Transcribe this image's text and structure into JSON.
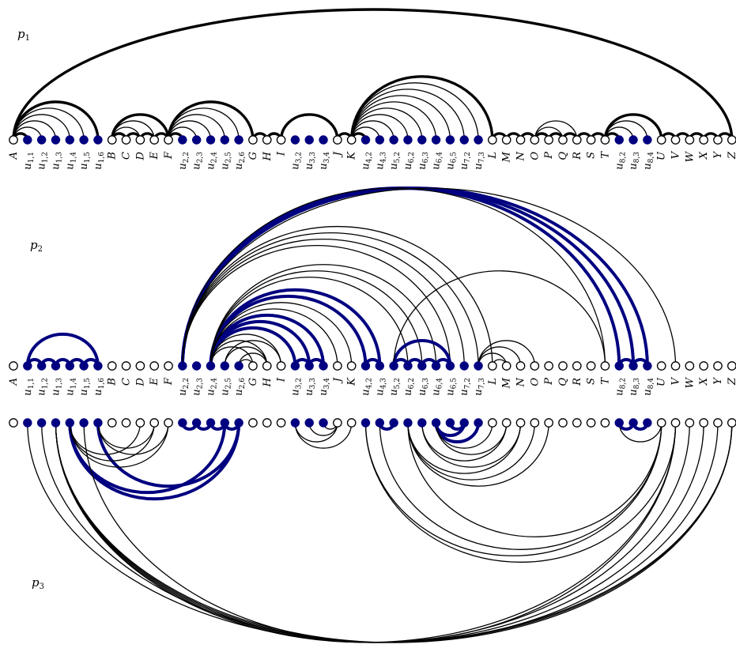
{
  "colors": {
    "ink": "#000000",
    "accent": "#000080",
    "hollow_fill": "#ffffff"
  },
  "pages": [
    {
      "name": "p",
      "sub": "1"
    },
    {
      "name": "p",
      "sub": "2"
    },
    {
      "name": "p",
      "sub": "3"
    }
  ],
  "vertices": [
    {
      "main": "A"
    },
    {
      "main": "u",
      "sub": "1,1",
      "fill": 1
    },
    {
      "main": "u",
      "sub": "1,2",
      "fill": 1
    },
    {
      "main": "u",
      "sub": "1,3",
      "fill": 1
    },
    {
      "main": "u",
      "sub": "1,4",
      "fill": 1
    },
    {
      "main": "u",
      "sub": "1,5",
      "fill": 1
    },
    {
      "main": "u",
      "sub": "1,6",
      "fill": 1
    },
    {
      "main": "B"
    },
    {
      "main": "C"
    },
    {
      "main": "D"
    },
    {
      "main": "E"
    },
    {
      "main": "F"
    },
    {
      "main": "u",
      "sub": "2,2",
      "fill": 1
    },
    {
      "main": "u",
      "sub": "2,3",
      "fill": 1
    },
    {
      "main": "u",
      "sub": "2,4",
      "fill": 1
    },
    {
      "main": "u",
      "sub": "2,5",
      "fill": 1
    },
    {
      "main": "u",
      "sub": "2,6",
      "fill": 1
    },
    {
      "main": "G"
    },
    {
      "main": "H"
    },
    {
      "main": "I"
    },
    {
      "main": "u",
      "sub": "3,2",
      "fill": 1
    },
    {
      "main": "u",
      "sub": "3,3",
      "fill": 1
    },
    {
      "main": "u",
      "sub": "3,4",
      "fill": 1
    },
    {
      "main": "J"
    },
    {
      "main": "K"
    },
    {
      "main": "u",
      "sub": "4,2",
      "fill": 1
    },
    {
      "main": "u",
      "sub": "4,3",
      "fill": 1
    },
    {
      "main": "u",
      "sub": "5,2",
      "fill": 1
    },
    {
      "main": "u",
      "sub": "6,2",
      "fill": 1
    },
    {
      "main": "u",
      "sub": "6,3",
      "fill": 1
    },
    {
      "main": "u",
      "sub": "6,4",
      "fill": 1
    },
    {
      "main": "u",
      "sub": "6,5",
      "fill": 1
    },
    {
      "main": "u",
      "sub": "7,2",
      "fill": 1
    },
    {
      "main": "u",
      "sub": "7,3",
      "fill": 1
    },
    {
      "main": "L"
    },
    {
      "main": "M"
    },
    {
      "main": "N"
    },
    {
      "main": "O"
    },
    {
      "main": "P"
    },
    {
      "main": "Q"
    },
    {
      "main": "R"
    },
    {
      "main": "S"
    },
    {
      "main": "T"
    },
    {
      "main": "u",
      "sub": "8,2",
      "fill": 1
    },
    {
      "main": "u",
      "sub": "8,3",
      "fill": 1
    },
    {
      "main": "u",
      "sub": "8,4",
      "fill": 1
    },
    {
      "main": "U"
    },
    {
      "main": "V"
    },
    {
      "main": "W"
    },
    {
      "main": "X"
    },
    {
      "main": "Y"
    },
    {
      "main": "Z"
    }
  ],
  "edges": {
    "p1": [
      [
        0,
        51,
        "heavy"
      ],
      [
        0,
        6,
        "heavy"
      ],
      [
        0,
        1,
        "heavy"
      ],
      [
        0,
        5
      ],
      [
        0,
        4
      ],
      [
        0,
        3
      ],
      [
        0,
        2
      ],
      [
        7,
        11,
        "heavy"
      ],
      [
        7,
        8,
        "heavy"
      ],
      [
        8,
        9,
        "heavy"
      ],
      [
        9,
        10,
        "heavy"
      ],
      [
        10,
        11,
        "heavy"
      ],
      [
        7,
        10
      ],
      [
        7,
        9
      ],
      [
        11,
        17,
        "heavy"
      ],
      [
        11,
        12,
        "heavy"
      ],
      [
        11,
        16
      ],
      [
        11,
        15
      ],
      [
        11,
        14
      ],
      [
        11,
        13
      ],
      [
        17,
        18,
        "heavy"
      ],
      [
        18,
        19,
        "heavy"
      ],
      [
        19,
        23,
        "heavy"
      ],
      [
        23,
        24,
        "heavy"
      ],
      [
        24,
        34,
        "heavy"
      ],
      [
        24,
        25,
        "heavy"
      ],
      [
        24,
        33
      ],
      [
        24,
        32
      ],
      [
        24,
        31
      ],
      [
        24,
        30
      ],
      [
        24,
        29
      ],
      [
        24,
        28
      ],
      [
        24,
        27
      ],
      [
        24,
        26
      ],
      [
        34,
        35,
        "heavy"
      ],
      [
        35,
        36,
        "heavy"
      ],
      [
        36,
        37,
        "heavy"
      ],
      [
        37,
        38,
        "heavy"
      ],
      [
        38,
        39,
        "heavy"
      ],
      [
        39,
        40,
        "heavy"
      ],
      [
        40,
        41,
        "heavy"
      ],
      [
        41,
        42,
        "heavy"
      ],
      [
        37,
        40
      ],
      [
        37,
        39
      ],
      [
        42,
        46,
        "heavy"
      ],
      [
        42,
        43,
        "heavy"
      ],
      [
        42,
        45
      ],
      [
        42,
        44
      ],
      [
        46,
        47,
        "heavy"
      ],
      [
        47,
        48,
        "heavy"
      ],
      [
        48,
        49,
        "heavy"
      ],
      [
        49,
        50,
        "heavy"
      ],
      [
        50,
        51,
        "heavy"
      ]
    ],
    "p2": [
      [
        1,
        6,
        "blue"
      ],
      [
        1,
        2,
        "blue"
      ],
      [
        2,
        3,
        "blue"
      ],
      [
        3,
        4,
        "blue"
      ],
      [
        4,
        5,
        "blue"
      ],
      [
        5,
        6,
        "blue"
      ],
      [
        12,
        45,
        "blue"
      ],
      [
        12,
        44,
        "blue"
      ],
      [
        12,
        43,
        "blue"
      ],
      [
        12,
        47
      ],
      [
        12,
        42
      ],
      [
        12,
        34
      ],
      [
        12,
        33
      ],
      [
        12,
        32
      ],
      [
        12,
        31
      ],
      [
        14,
        26,
        "blue"
      ],
      [
        14,
        25,
        "blue"
      ],
      [
        14,
        22,
        "blue"
      ],
      [
        14,
        21,
        "blue"
      ],
      [
        14,
        20,
        "blue"
      ],
      [
        14,
        30
      ],
      [
        14,
        29
      ],
      [
        14,
        28
      ],
      [
        14,
        24
      ],
      [
        14,
        23
      ],
      [
        14,
        19
      ],
      [
        14,
        18
      ],
      [
        14,
        17
      ],
      [
        15,
        19
      ],
      [
        15,
        18
      ],
      [
        16,
        18
      ],
      [
        16,
        17
      ],
      [
        20,
        21,
        "blue"
      ],
      [
        21,
        22,
        "blue"
      ],
      [
        25,
        26,
        "blue"
      ],
      [
        27,
        31,
        "blue"
      ],
      [
        27,
        28,
        "blue"
      ],
      [
        28,
        29,
        "blue"
      ],
      [
        29,
        30,
        "blue"
      ],
      [
        30,
        31,
        "blue"
      ],
      [
        27,
        42
      ],
      [
        33,
        37
      ],
      [
        33,
        36
      ],
      [
        33,
        35
      ],
      [
        34,
        35
      ],
      [
        43,
        44,
        "blue"
      ],
      [
        44,
        45,
        "blue"
      ]
    ],
    "p3": [
      [
        4,
        16,
        "blue"
      ],
      [
        4,
        15,
        "blue"
      ],
      [
        6,
        16,
        "blue"
      ],
      [
        12,
        13,
        "blue"
      ],
      [
        13,
        14,
        "blue"
      ],
      [
        14,
        15,
        "blue"
      ],
      [
        15,
        16,
        "blue"
      ],
      [
        1,
        51
      ],
      [
        2,
        51
      ],
      [
        3,
        51
      ],
      [
        3,
        50
      ],
      [
        3,
        49
      ],
      [
        3,
        48
      ],
      [
        3,
        47
      ],
      [
        5,
        47
      ],
      [
        6,
        10
      ],
      [
        6,
        11
      ],
      [
        4,
        11
      ],
      [
        4,
        10
      ],
      [
        4,
        9
      ],
      [
        20,
        23
      ],
      [
        20,
        24
      ],
      [
        21,
        23
      ],
      [
        22,
        23
      ],
      [
        26,
        27,
        "blue"
      ],
      [
        30,
        32,
        "blue"
      ],
      [
        30,
        33,
        "blue"
      ],
      [
        31,
        32,
        "blue"
      ],
      [
        25,
        47
      ],
      [
        25,
        46
      ],
      [
        26,
        46
      ],
      [
        28,
        46
      ],
      [
        28,
        36
      ],
      [
        28,
        37
      ],
      [
        28,
        38
      ],
      [
        29,
        36
      ],
      [
        29,
        35
      ],
      [
        30,
        35
      ],
      [
        30,
        34
      ],
      [
        43,
        44,
        "blue"
      ],
      [
        44,
        45,
        "blue"
      ],
      [
        43,
        46
      ]
    ]
  }
}
